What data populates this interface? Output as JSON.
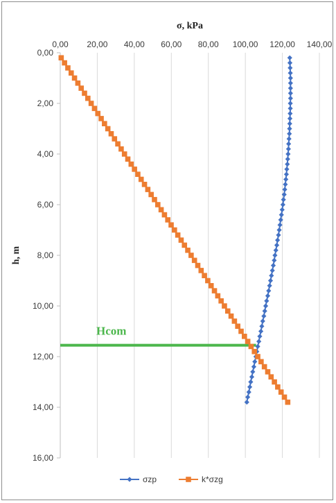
{
  "chart_data": {
    "type": "scatter",
    "x_axis": {
      "label": "σ, kPa",
      "position": "top",
      "range": [
        0,
        140
      ],
      "ticks": [
        0,
        20,
        40,
        60,
        80,
        100,
        120,
        140
      ],
      "tick_labels": [
        "0,00",
        "20,00",
        "40,00",
        "60,00",
        "80,00",
        "100,00",
        "120,00",
        "140,00"
      ]
    },
    "y_axis": {
      "label": "h, m",
      "inverted": true,
      "range": [
        0,
        16
      ],
      "ticks": [
        0,
        2,
        4,
        6,
        8,
        10,
        12,
        14,
        16
      ],
      "tick_labels": [
        "0,00",
        "2,00",
        "4,00",
        "6,00",
        "8,00",
        "10,00",
        "12,00",
        "14,00",
        "16,00"
      ]
    },
    "grid": {
      "vertical": true,
      "horizontal": false
    },
    "legend": {
      "placement": "bottom"
    },
    "series": [
      {
        "name": "σzp",
        "color": "#4472c4",
        "marker": "diamond",
        "points": [
          [
            124.0,
            0.2
          ],
          [
            124.1,
            0.4
          ],
          [
            124.2,
            0.6
          ],
          [
            124.3,
            0.8
          ],
          [
            124.4,
            1.0
          ],
          [
            124.4,
            1.2
          ],
          [
            124.4,
            1.4
          ],
          [
            124.4,
            1.6
          ],
          [
            124.4,
            1.8
          ],
          [
            124.3,
            2.0
          ],
          [
            124.3,
            2.2
          ],
          [
            124.2,
            2.4
          ],
          [
            124.1,
            2.6
          ],
          [
            124.0,
            2.8
          ],
          [
            123.9,
            3.0
          ],
          [
            123.8,
            3.2
          ],
          [
            123.6,
            3.4
          ],
          [
            123.4,
            3.6
          ],
          [
            123.3,
            3.8
          ],
          [
            123.1,
            4.0
          ],
          [
            122.9,
            4.2
          ],
          [
            122.7,
            4.4
          ],
          [
            122.4,
            4.6
          ],
          [
            122.2,
            4.8
          ],
          [
            121.9,
            5.0
          ],
          [
            121.6,
            5.2
          ],
          [
            121.3,
            5.4
          ],
          [
            121.0,
            5.6
          ],
          [
            120.6,
            5.8
          ],
          [
            120.3,
            6.0
          ],
          [
            119.9,
            6.2
          ],
          [
            119.5,
            6.4
          ],
          [
            119.1,
            6.6
          ],
          [
            118.7,
            6.8
          ],
          [
            118.3,
            7.0
          ],
          [
            117.9,
            7.2
          ],
          [
            117.4,
            7.4
          ],
          [
            117.0,
            7.6
          ],
          [
            116.5,
            7.8
          ],
          [
            116.0,
            8.0
          ],
          [
            115.6,
            8.2
          ],
          [
            115.1,
            8.4
          ],
          [
            114.6,
            8.6
          ],
          [
            114.1,
            8.8
          ],
          [
            113.6,
            9.0
          ],
          [
            113.1,
            9.2
          ],
          [
            112.6,
            9.4
          ],
          [
            112.1,
            9.6
          ],
          [
            111.5,
            9.8
          ],
          [
            111.0,
            10.0
          ],
          [
            110.5,
            10.2
          ],
          [
            110.0,
            10.4
          ],
          [
            109.4,
            10.6
          ],
          [
            108.9,
            10.8
          ],
          [
            108.4,
            11.0
          ],
          [
            107.8,
            11.2
          ],
          [
            107.3,
            11.4
          ],
          [
            106.7,
            11.6
          ],
          [
            106.2,
            11.8
          ],
          [
            105.7,
            12.0
          ],
          [
            105.1,
            12.2
          ],
          [
            104.6,
            12.4
          ],
          [
            104.0,
            12.6
          ],
          [
            103.5,
            12.8
          ],
          [
            102.9,
            13.0
          ],
          [
            102.4,
            13.2
          ],
          [
            101.9,
            13.4
          ],
          [
            101.3,
            13.6
          ],
          [
            100.8,
            13.8
          ]
        ]
      },
      {
        "name": "k*σzg",
        "color": "#ed7d31",
        "marker": "square",
        "points": [
          [
            0.5,
            0.2
          ],
          [
            2.3,
            0.4
          ],
          [
            4.1,
            0.6
          ],
          [
            5.9,
            0.8
          ],
          [
            7.7,
            1.0
          ],
          [
            9.5,
            1.2
          ],
          [
            11.3,
            1.4
          ],
          [
            13.1,
            1.6
          ],
          [
            14.9,
            1.8
          ],
          [
            16.7,
            2.0
          ],
          [
            18.5,
            2.2
          ],
          [
            20.3,
            2.4
          ],
          [
            22.1,
            2.6
          ],
          [
            23.9,
            2.8
          ],
          [
            25.7,
            3.0
          ],
          [
            27.5,
            3.2
          ],
          [
            29.3,
            3.4
          ],
          [
            31.1,
            3.6
          ],
          [
            32.9,
            3.8
          ],
          [
            34.7,
            4.0
          ],
          [
            36.5,
            4.2
          ],
          [
            38.3,
            4.4
          ],
          [
            40.1,
            4.6
          ],
          [
            41.9,
            4.8
          ],
          [
            43.7,
            5.0
          ],
          [
            45.5,
            5.2
          ],
          [
            47.3,
            5.4
          ],
          [
            49.1,
            5.6
          ],
          [
            50.9,
            5.8
          ],
          [
            52.7,
            6.0
          ],
          [
            54.5,
            6.2
          ],
          [
            56.3,
            6.4
          ],
          [
            58.1,
            6.6
          ],
          [
            59.9,
            6.8
          ],
          [
            61.7,
            7.0
          ],
          [
            63.5,
            7.2
          ],
          [
            65.3,
            7.4
          ],
          [
            67.1,
            7.6
          ],
          [
            68.9,
            7.8
          ],
          [
            70.7,
            8.0
          ],
          [
            72.5,
            8.2
          ],
          [
            74.3,
            8.4
          ],
          [
            76.1,
            8.6
          ],
          [
            77.9,
            8.8
          ],
          [
            79.7,
            9.0
          ],
          [
            81.5,
            9.2
          ],
          [
            83.3,
            9.4
          ],
          [
            85.1,
            9.6
          ],
          [
            86.9,
            9.8
          ],
          [
            88.7,
            10.0
          ],
          [
            90.5,
            10.2
          ],
          [
            92.3,
            10.4
          ],
          [
            94.1,
            10.6
          ],
          [
            95.9,
            10.8
          ],
          [
            97.7,
            11.0
          ],
          [
            99.5,
            11.2
          ],
          [
            101.3,
            11.4
          ],
          [
            103.1,
            11.6
          ],
          [
            104.9,
            11.8
          ],
          [
            106.7,
            12.0
          ],
          [
            108.5,
            12.2
          ],
          [
            110.3,
            12.4
          ],
          [
            112.1,
            12.6
          ],
          [
            113.9,
            12.8
          ],
          [
            115.7,
            13.0
          ],
          [
            117.5,
            13.2
          ],
          [
            119.3,
            13.4
          ],
          [
            121.1,
            13.6
          ],
          [
            122.9,
            13.8
          ]
        ]
      }
    ],
    "annotations": [
      {
        "label": "Hcom",
        "color": "#4cb74c",
        "type": "horizontal_line",
        "y": 11.55,
        "x_range": [
          0,
          105.8
        ]
      }
    ]
  }
}
